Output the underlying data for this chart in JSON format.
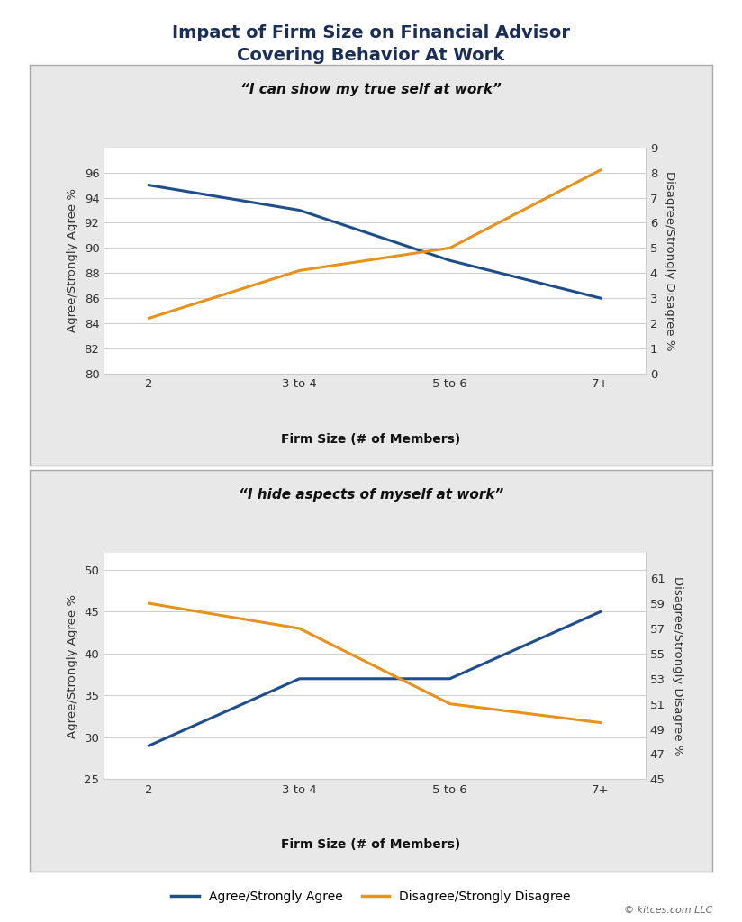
{
  "title": "Impact of Firm Size on Financial Advisor\nCovering Behavior At Work",
  "title_color": "#1a2e5a",
  "title_fontsize": 14,
  "categories": [
    "2",
    "3 to 4",
    "5 to 6",
    "7+"
  ],
  "panel1": {
    "subtitle": "“I can show my true self at work”",
    "agree_values": [
      95.0,
      93.0,
      89.0,
      86.0
    ],
    "disagree_values": [
      2.2,
      4.1,
      5.0,
      8.1
    ],
    "left_ylim": [
      80,
      98
    ],
    "left_yticks": [
      80,
      82,
      84,
      86,
      88,
      90,
      92,
      94,
      96
    ],
    "right_ylim": [
      0,
      9
    ],
    "right_yticks": [
      0,
      1,
      2,
      3,
      4,
      5,
      6,
      7,
      8,
      9
    ],
    "ylabel_left": "Agree/Strongly Agree %",
    "ylabel_right": "Disagree/Strongly Disagree %",
    "xlabel": "Firm Size (# of Members)"
  },
  "panel2": {
    "subtitle": "“I hide aspects of myself at work”",
    "agree_values": [
      29.0,
      37.0,
      37.0,
      45.0
    ],
    "disagree_values": [
      59.0,
      57.0,
      51.0,
      49.5
    ],
    "left_ylim": [
      25,
      52
    ],
    "left_yticks": [
      25,
      30,
      35,
      40,
      45,
      50
    ],
    "right_ylim": [
      45,
      63
    ],
    "right_yticks": [
      45,
      47,
      49,
      51,
      53,
      55,
      57,
      59,
      61
    ],
    "ylabel_left": "Agree/Strongly Agree %",
    "ylabel_right": "Disagree/Strongly Disagree %",
    "xlabel": "Firm Size (# of Members)"
  },
  "line_blue": "#1f4e8c",
  "line_orange": "#e8921a",
  "line_width": 2.2,
  "panel_header_bg": "#e8e8e8",
  "plot_bg": "#ffffff",
  "outer_bg": "#ffffff",
  "grid_color": "#cccccc",
  "border_color": "#aaaaaa",
  "legend_label_agree": "Agree/Strongly Agree",
  "legend_label_disagree": "Disagree/Strongly Disagree",
  "footer_text": "© kitces.com LLC"
}
